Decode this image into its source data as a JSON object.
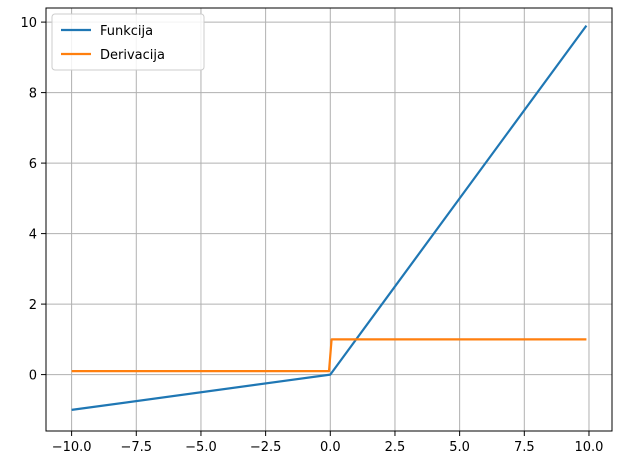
{
  "chart_data": {
    "type": "line",
    "title": "",
    "xlabel": "",
    "ylabel": "",
    "xlim": [
      -10.99,
      10.89
    ],
    "ylim": [
      -1.6,
      10.4
    ],
    "xticks": [
      -10.0,
      -7.5,
      -5.0,
      -2.5,
      0.0,
      2.5,
      5.0,
      7.5,
      10.0
    ],
    "xtick_labels": [
      "−10.0",
      "−7.5",
      "−5.0",
      "−2.5",
      "0.0",
      "2.5",
      "5.0",
      "7.5",
      "10.0"
    ],
    "yticks": [
      0,
      2,
      4,
      6,
      8,
      10
    ],
    "ytick_labels": [
      "0",
      "2",
      "4",
      "6",
      "8",
      "10"
    ],
    "grid": true,
    "legend_position": "top-left",
    "series": [
      {
        "name": "Funkcija",
        "color": "#1f77b4",
        "x": [
          -10.0,
          0.0,
          9.9
        ],
        "y": [
          -1.0,
          0.0,
          9.9
        ]
      },
      {
        "name": "Derivacija",
        "color": "#ff7f0e",
        "x": [
          -10.0,
          -0.05,
          0.05,
          9.9
        ],
        "y": [
          0.1,
          0.1,
          1.0,
          1.0
        ]
      }
    ]
  }
}
